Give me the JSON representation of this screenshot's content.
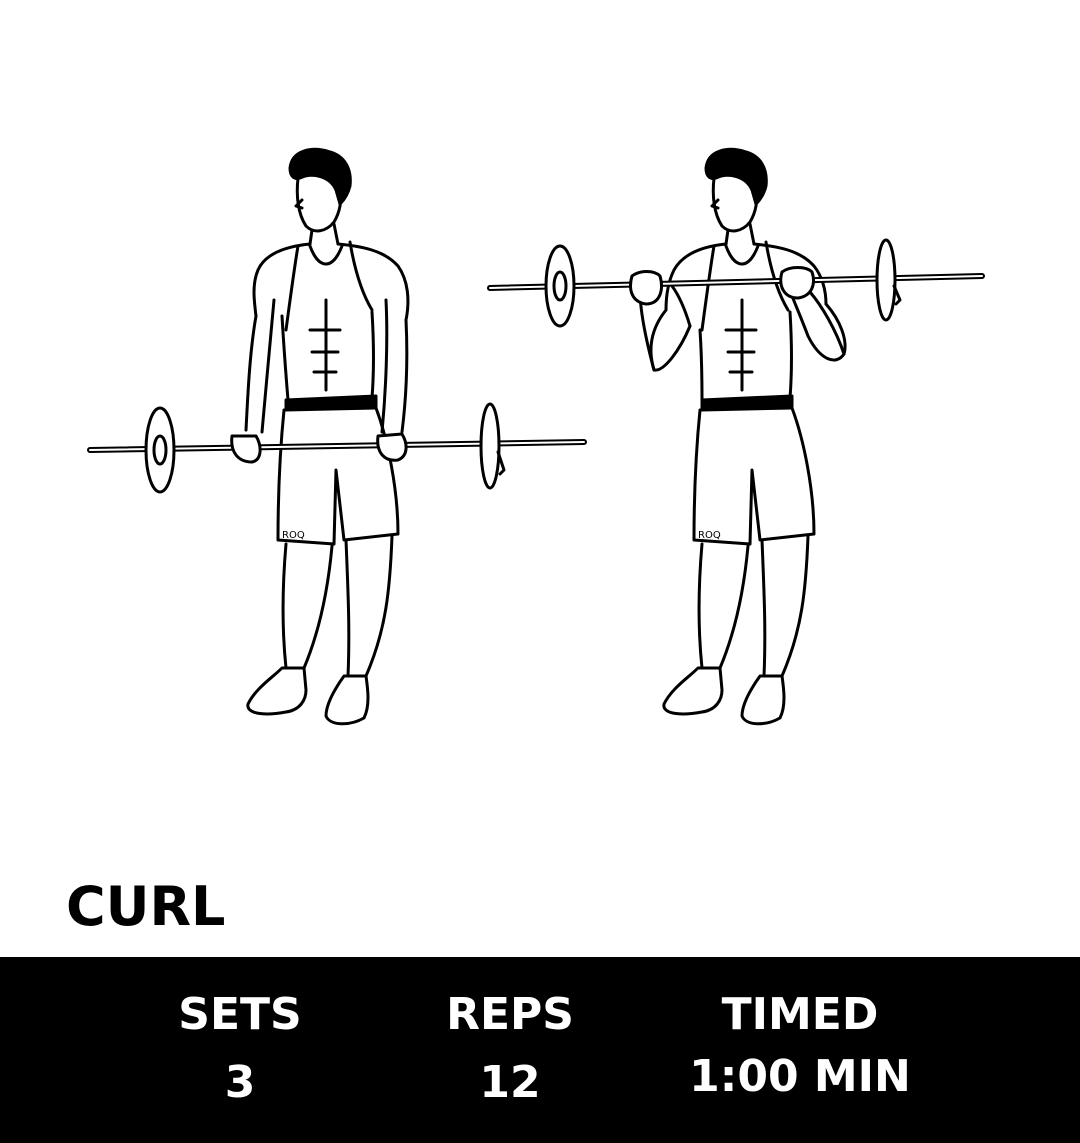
{
  "exercise": {
    "title": "CURL",
    "brand_mark": "ROQ"
  },
  "stats": {
    "sets": {
      "label": "SETS",
      "value": "3"
    },
    "reps": {
      "label": "REPS",
      "value": "12"
    },
    "timed": {
      "label": "TIMED",
      "value": "1:00 MIN"
    }
  },
  "illustration": {
    "description_icon": "barbell-curl-figures-icon",
    "line_color": "#000000",
    "background": "#ffffff"
  },
  "colors": {
    "bar_background": "#000000",
    "bar_text": "#ffffff",
    "title_text": "#000000"
  }
}
